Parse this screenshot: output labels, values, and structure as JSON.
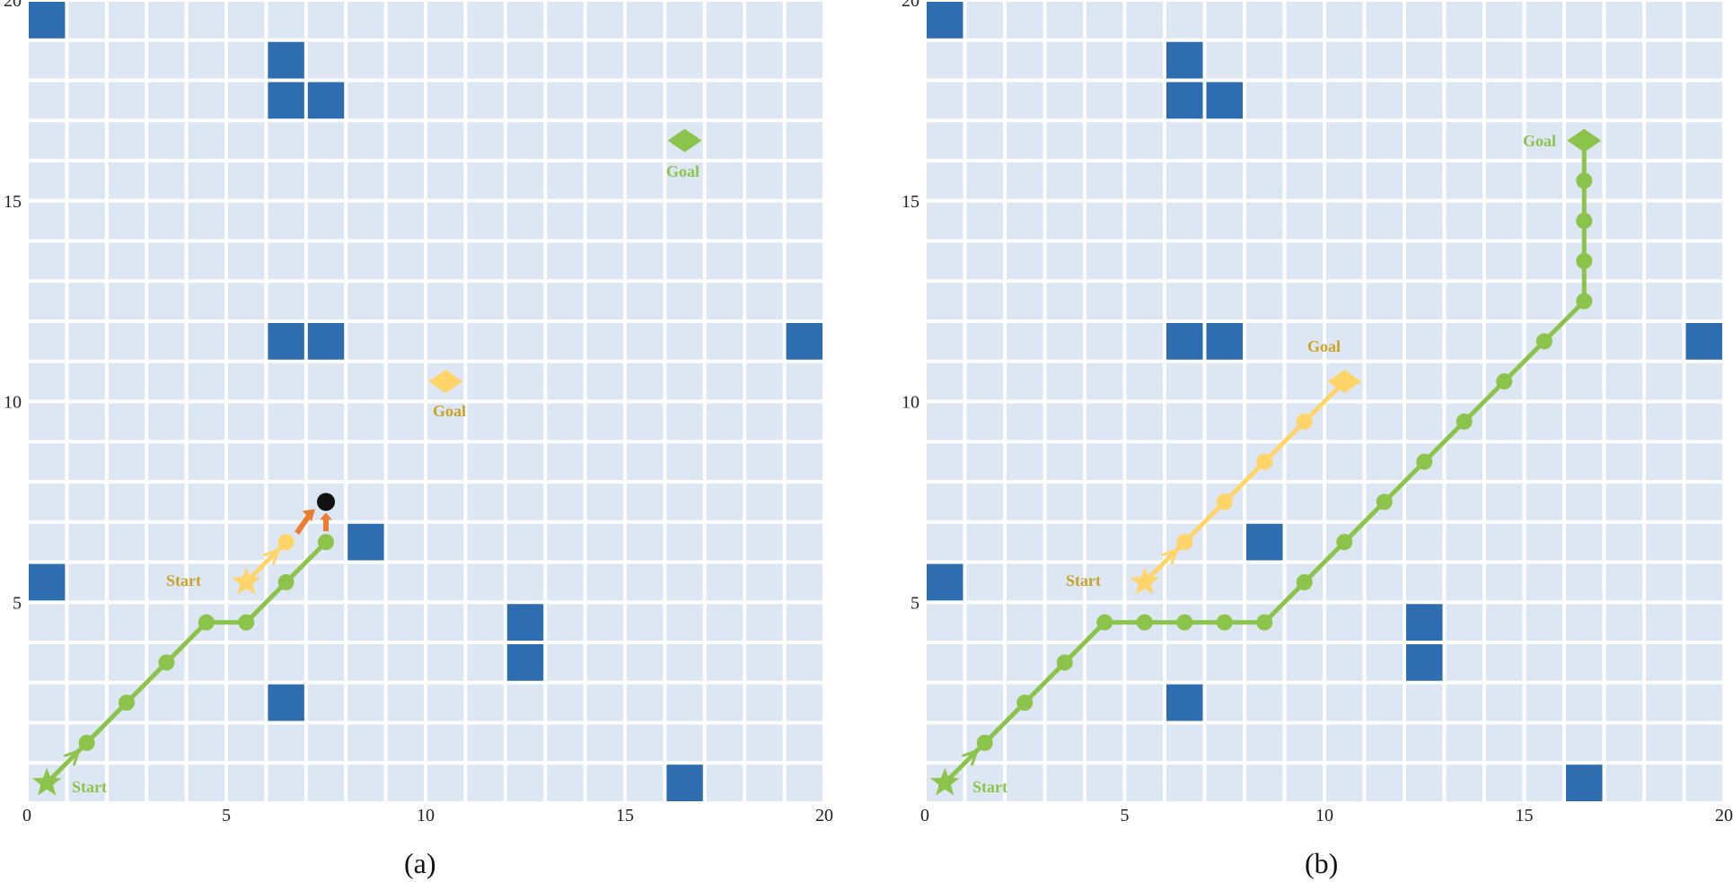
{
  "colors": {
    "cell": "#dde7f3",
    "grid_line": "#ffffff",
    "obstacle": "#2e6db0",
    "green": "#8cc34a",
    "yellow": "#ffd56a",
    "yellow_text": "#c9a227",
    "orange": "#ed7d31",
    "black": "#111111"
  },
  "grid": {
    "size": 20,
    "ticks": [
      "0",
      "5",
      "10",
      "15",
      "20"
    ],
    "tick_values": [
      0,
      5,
      10,
      15,
      20
    ]
  },
  "panels": [
    {
      "id": "a",
      "caption": "(a)",
      "obstacles": [
        [
          0,
          19
        ],
        [
          6,
          18
        ],
        [
          6,
          17
        ],
        [
          7,
          17
        ],
        [
          6,
          11
        ],
        [
          7,
          11
        ],
        [
          19,
          11
        ],
        [
          8,
          6
        ],
        [
          0,
          5
        ],
        [
          12,
          4
        ],
        [
          12,
          3
        ],
        [
          6,
          2
        ],
        [
          16,
          0
        ]
      ],
      "green_agent": {
        "start_label": "Start",
        "goal_label": "Goal",
        "start": [
          0.5,
          0.5
        ],
        "goal": [
          16.5,
          16.5
        ],
        "path": [
          [
            0.5,
            0.5
          ],
          [
            1.5,
            1.5
          ],
          [
            2.5,
            2.5
          ],
          [
            3.5,
            3.5
          ],
          [
            4.5,
            4.5
          ],
          [
            5.5,
            4.5
          ],
          [
            6.5,
            5.5
          ],
          [
            7.5,
            6.5
          ]
        ]
      },
      "yellow_agent": {
        "start_label": "Start",
        "goal_label": "Goal",
        "start": [
          5.5,
          5.5
        ],
        "goal": [
          10.5,
          10.5
        ],
        "path": [
          [
            5.5,
            5.5
          ],
          [
            6.5,
            6.5
          ]
        ]
      },
      "collision_point": [
        7.5,
        7.5
      ]
    },
    {
      "id": "b",
      "caption": "(b)",
      "obstacles": [
        [
          0,
          19
        ],
        [
          6,
          18
        ],
        [
          6,
          17
        ],
        [
          7,
          17
        ],
        [
          6,
          11
        ],
        [
          7,
          11
        ],
        [
          19,
          11
        ],
        [
          8,
          6
        ],
        [
          0,
          5
        ],
        [
          12,
          4
        ],
        [
          12,
          3
        ],
        [
          6,
          2
        ],
        [
          16,
          0
        ]
      ],
      "green_agent": {
        "start_label": "Start",
        "goal_label": "Goal",
        "start": [
          0.5,
          0.5
        ],
        "goal": [
          16.5,
          16.5
        ],
        "path": [
          [
            0.5,
            0.5
          ],
          [
            1.5,
            1.5
          ],
          [
            2.5,
            2.5
          ],
          [
            3.5,
            3.5
          ],
          [
            4.5,
            4.5
          ],
          [
            5.5,
            4.5
          ],
          [
            6.5,
            4.5
          ],
          [
            7.5,
            4.5
          ],
          [
            8.5,
            4.5
          ],
          [
            9.5,
            5.5
          ],
          [
            10.5,
            6.5
          ],
          [
            11.5,
            7.5
          ],
          [
            12.5,
            8.5
          ],
          [
            13.5,
            9.5
          ],
          [
            14.5,
            10.5
          ],
          [
            15.5,
            11.5
          ],
          [
            16.5,
            12.5
          ],
          [
            16.5,
            13.5
          ],
          [
            16.5,
            14.5
          ],
          [
            16.5,
            15.5
          ],
          [
            16.5,
            16.5
          ]
        ]
      },
      "yellow_agent": {
        "start_label": "Start",
        "goal_label": "Goal",
        "start": [
          5.5,
          5.5
        ],
        "goal": [
          10.5,
          10.5
        ],
        "path": [
          [
            5.5,
            5.5
          ],
          [
            6.5,
            6.5
          ],
          [
            7.5,
            7.5
          ],
          [
            8.5,
            8.5
          ],
          [
            9.5,
            9.5
          ],
          [
            10.5,
            10.5
          ]
        ]
      }
    }
  ]
}
